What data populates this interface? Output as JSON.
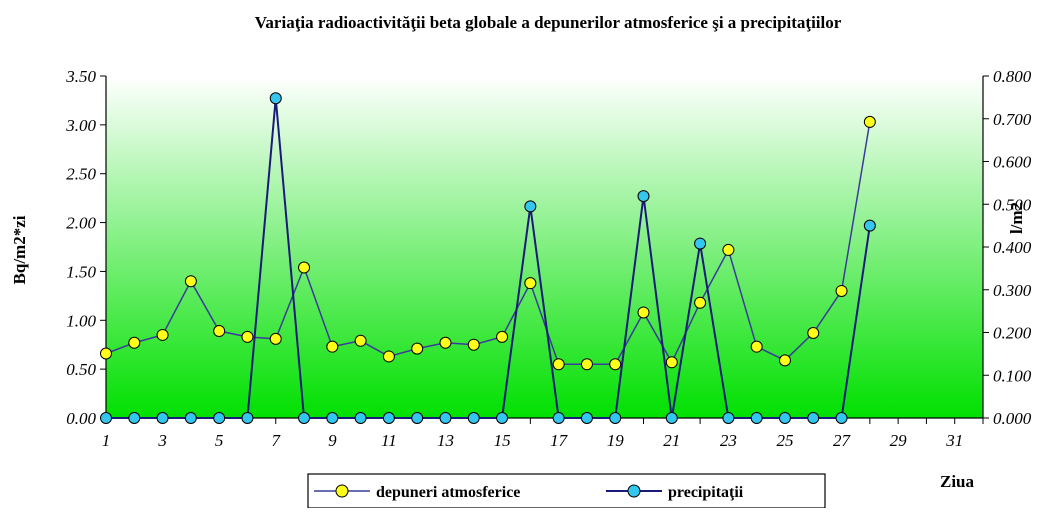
{
  "chart_data": {
    "type": "line",
    "title": "Variaţia radioactivităţii beta globale a depunerilor atmosferice şi a precipitaţiilor",
    "xlabel": "Ziua",
    "ylabel_left": "Bq/m2*zi",
    "ylabel_right": "l/m2",
    "x_ticks": [
      "1",
      "3",
      "5",
      "7",
      "9",
      "11",
      "13",
      "15",
      "17",
      "19",
      "21",
      "23",
      "25",
      "27",
      "29",
      "31"
    ],
    "x_range": [
      1,
      32
    ],
    "y_left": {
      "range": [
        0,
        3.5
      ],
      "ticks": [
        "0.00",
        "0.50",
        "1.00",
        "1.50",
        "2.00",
        "2.50",
        "3.00",
        "3.50"
      ]
    },
    "y_right": {
      "range": [
        0,
        0.8
      ],
      "ticks": [
        "0.000",
        "0.100",
        "0.200",
        "0.300",
        "0.400",
        "0.500",
        "0.600",
        "0.700",
        "0.800"
      ]
    },
    "series": [
      {
        "name": "depuneri atmosferice",
        "axis": "left",
        "color": "#3b3b9b",
        "marker_color": "#ffff1a",
        "x": [
          1,
          2,
          3,
          4,
          5,
          6,
          7,
          8,
          9,
          10,
          11,
          12,
          13,
          14,
          15,
          16,
          17,
          18,
          19,
          20,
          21,
          22,
          23,
          24,
          25,
          26,
          27,
          28
        ],
        "values": [
          0.66,
          0.77,
          0.85,
          1.4,
          0.89,
          0.83,
          0.81,
          1.54,
          0.73,
          0.79,
          0.63,
          0.71,
          0.77,
          0.75,
          0.83,
          1.38,
          0.55,
          0.55,
          0.55,
          1.08,
          0.57,
          1.18,
          1.72,
          0.73,
          0.59,
          0.87,
          1.3,
          3.03
        ]
      },
      {
        "name": "precipitaţii",
        "axis": "right",
        "color": "#1a1a7a",
        "marker_color": "#33c7f0",
        "x": [
          1,
          2,
          3,
          4,
          5,
          6,
          7,
          8,
          9,
          10,
          11,
          12,
          13,
          14,
          15,
          16,
          17,
          18,
          19,
          20,
          21,
          22,
          23,
          24,
          25,
          26,
          27,
          28
        ],
        "values": [
          0,
          0,
          0,
          0,
          0,
          0,
          0.748,
          0,
          0,
          0,
          0,
          0,
          0,
          0,
          0,
          0.495,
          0,
          0,
          0,
          0.519,
          0,
          0.408,
          0,
          0,
          0,
          0,
          0,
          0.45
        ]
      }
    ],
    "legend": "bottom",
    "background_gradient": [
      "#ffffff",
      "#00e000"
    ],
    "grid": false
  }
}
